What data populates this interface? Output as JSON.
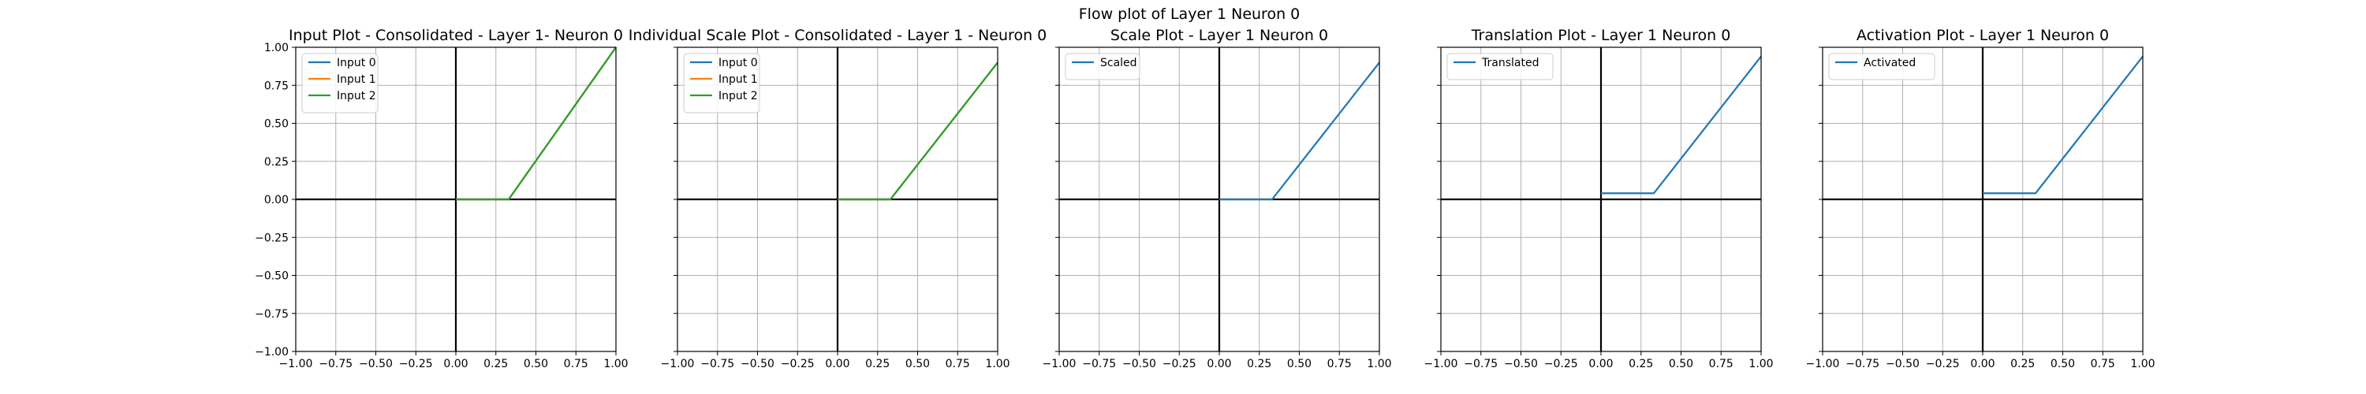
{
  "figure": {
    "suptitle": "Flow plot of Layer 1 Neuron 0"
  },
  "chart_data": [
    {
      "type": "line",
      "title": "Input Plot - Consolidated - Layer 1- Neuron 0",
      "xlim": [
        -1.0,
        1.0
      ],
      "ylim": [
        -1.0,
        1.0
      ],
      "xticks": [
        "−1.00",
        "−0.75",
        "−0.50",
        "−0.25",
        "0.00",
        "0.25",
        "0.50",
        "0.75",
        "1.00"
      ],
      "yticks": [
        "1.00",
        "0.75",
        "0.50",
        "0.25",
        "0.00",
        "−0.25",
        "−0.50",
        "−0.75",
        "−1.00"
      ],
      "show_yticks": true,
      "grid": true,
      "legend_position": "top-left",
      "series": [
        {
          "name": "Input 0",
          "color": "#1f77b4",
          "x": [
            0.0,
            0.33,
            1.0
          ],
          "y": [
            0.0,
            0.0,
            1.0
          ]
        },
        {
          "name": "Input 1",
          "color": "#ff7f0e",
          "x": [
            0.0,
            0.33,
            1.0
          ],
          "y": [
            0.0,
            0.0,
            1.0
          ]
        },
        {
          "name": "Input 2",
          "color": "#2ca02c",
          "x": [
            0.0,
            0.33,
            1.0
          ],
          "y": [
            0.0,
            0.0,
            1.0
          ]
        }
      ]
    },
    {
      "type": "line",
      "title": "Individual Scale Plot - Consolidated - Layer 1 - Neuron 0",
      "xlim": [
        -1.0,
        1.0
      ],
      "ylim": [
        -1.0,
        1.0
      ],
      "xticks": [
        "−1.00",
        "−0.75",
        "−0.50",
        "−0.25",
        "0.00",
        "0.25",
        "0.50",
        "0.75",
        "1.00"
      ],
      "yticks": [],
      "show_yticks": false,
      "grid": true,
      "legend_position": "top-left",
      "series": [
        {
          "name": "Input 0",
          "color": "#1f77b4",
          "x": [
            0.0,
            0.33,
            1.0
          ],
          "y": [
            0.0,
            0.0,
            0.9
          ]
        },
        {
          "name": "Input 1",
          "color": "#ff7f0e",
          "x": [
            0.0,
            0.33,
            1.0
          ],
          "y": [
            0.0,
            0.0,
            0.9
          ]
        },
        {
          "name": "Input 2",
          "color": "#2ca02c",
          "x": [
            0.0,
            0.33,
            1.0
          ],
          "y": [
            0.0,
            0.0,
            0.9
          ]
        }
      ]
    },
    {
      "type": "line",
      "title": "Scale Plot - Layer 1 Neuron 0",
      "xlim": [
        -1.0,
        1.0
      ],
      "ylim": [
        -1.0,
        1.0
      ],
      "xticks": [
        "−1.00",
        "−0.75",
        "−0.50",
        "−0.25",
        "0.00",
        "0.25",
        "0.50",
        "0.75",
        "1.00"
      ],
      "yticks": [],
      "show_yticks": false,
      "grid": true,
      "legend_position": "top-left",
      "series": [
        {
          "name": "Scaled",
          "color": "#1f77b4",
          "x": [
            0.0,
            0.33,
            1.0
          ],
          "y": [
            0.0,
            0.0,
            0.9
          ]
        }
      ]
    },
    {
      "type": "line",
      "title": "Translation Plot - Layer 1 Neuron 0",
      "xlim": [
        -1.0,
        1.0
      ],
      "ylim": [
        -1.0,
        1.0
      ],
      "xticks": [
        "−1.00",
        "−0.75",
        "−0.50",
        "−0.25",
        "0.00",
        "0.25",
        "0.50",
        "0.75",
        "1.00"
      ],
      "yticks": [],
      "show_yticks": false,
      "grid": true,
      "legend_position": "top-left",
      "series": [
        {
          "name": "Translated",
          "color": "#1f77b4",
          "x": [
            0.0,
            0.33,
            1.0
          ],
          "y": [
            0.04,
            0.04,
            0.94
          ]
        }
      ]
    },
    {
      "type": "line",
      "title": "Activation Plot - Layer 1 Neuron 0",
      "xlim": [
        -1.0,
        1.0
      ],
      "ylim": [
        -1.0,
        1.0
      ],
      "xticks": [
        "−1.00",
        "−0.75",
        "−0.50",
        "−0.25",
        "0.00",
        "0.25",
        "0.50",
        "0.75",
        "1.00"
      ],
      "yticks": [],
      "show_yticks": false,
      "grid": true,
      "legend_position": "top-left",
      "series": [
        {
          "name": "Activated",
          "color": "#1f77b4",
          "x": [
            0.0,
            0.33,
            1.0
          ],
          "y": [
            0.04,
            0.04,
            0.94
          ]
        }
      ]
    }
  ]
}
